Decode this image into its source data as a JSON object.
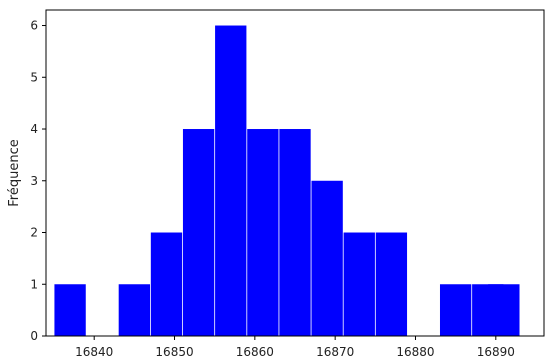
{
  "chart_data": {
    "type": "bar",
    "title": "",
    "xlabel": "",
    "ylabel": "Fréquence",
    "bar_color": "#0000ff",
    "bar_width": 3.9,
    "xlim": [
      16834,
      16896
    ],
    "ylim": [
      0,
      6.3
    ],
    "grid": false,
    "x_ticks": [
      16840,
      16850,
      16860,
      16870,
      16880,
      16890
    ],
    "x_tick_labels": [
      "16840",
      "16850",
      "16860",
      "16870",
      "16880",
      "16890"
    ],
    "y_ticks": [
      0,
      1,
      2,
      3,
      4,
      5,
      6
    ],
    "y_tick_labels": [
      "0",
      "1",
      "2",
      "3",
      "4",
      "5",
      "6"
    ],
    "x": [
      16837,
      16845,
      16849,
      16853,
      16857,
      16861,
      16865,
      16869,
      16873,
      16877,
      16885,
      16889,
      16891
    ],
    "values": [
      1,
      1,
      2,
      4,
      6,
      4,
      4,
      3,
      2,
      2,
      1,
      1,
      1
    ]
  }
}
